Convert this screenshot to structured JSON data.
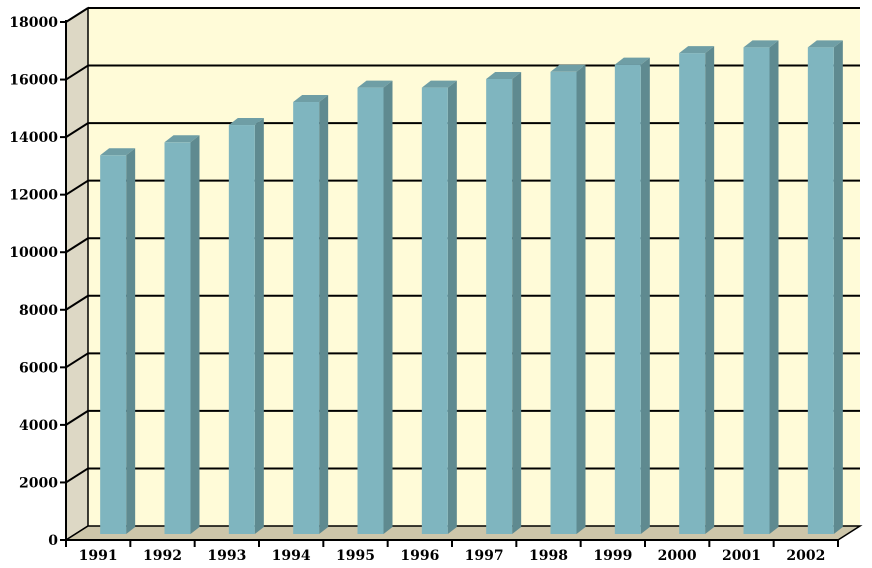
{
  "chart_data": {
    "type": "bar",
    "title": "",
    "xlabel": "",
    "ylabel": "",
    "categories": [
      "1991",
      "1992",
      "1993",
      "1994",
      "1995",
      "1996",
      "1997",
      "1998",
      "1999",
      "2000",
      "2001",
      "2002"
    ],
    "values": [
      13300,
      13750,
      14350,
      15150,
      15650,
      15650,
      15950,
      16200,
      16450,
      16850,
      17050,
      17050
    ],
    "ylim": [
      0,
      18000
    ],
    "yticks": [
      0,
      2000,
      4000,
      6000,
      8000,
      10000,
      12000,
      14000,
      16000,
      18000
    ],
    "ytick_labels": [
      "0",
      "2000",
      "4000",
      "6000",
      "8000",
      "10000",
      "12000",
      "14000",
      "16000",
      "18000"
    ],
    "grid": true,
    "legend": "none",
    "style": "3d-columns",
    "colors": {
      "bar_front": "#7fb5bf",
      "bar_side": "#5f8a90",
      "bar_top": "#6f9ea5",
      "back_wall": "#fffbd8",
      "side_wall": "#ddd8c5",
      "floor": "#cdc6aa"
    }
  }
}
